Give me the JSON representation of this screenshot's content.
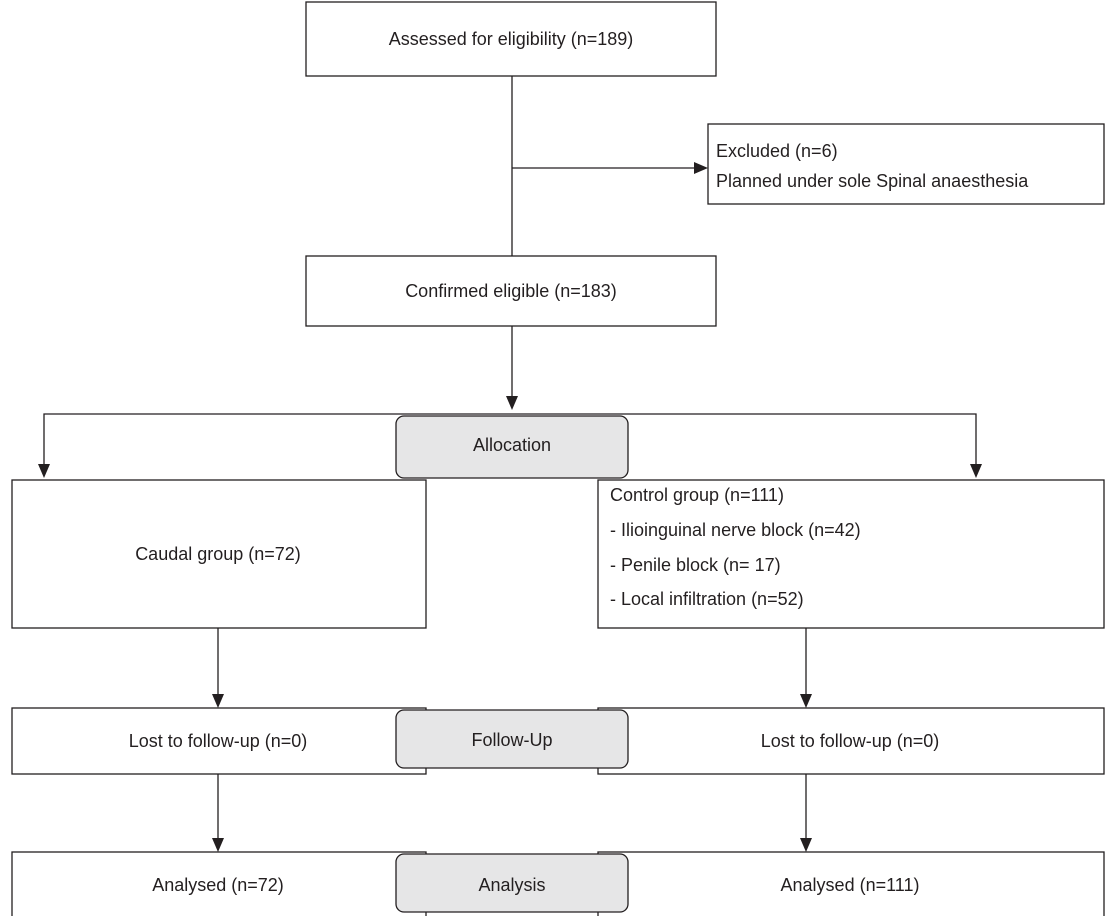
{
  "assessed": {
    "label": "Assessed for eligibility (n=189)"
  },
  "excluded": {
    "lines": [
      "Excluded (n=6)",
      "Planned under sole Spinal anaesthesia"
    ]
  },
  "confirmed": {
    "label": "Confirmed eligible (n=183)"
  },
  "stages": {
    "allocation": "Allocation",
    "follow_up": "Follow-Up",
    "analysis": "Analysis"
  },
  "caudal": {
    "label": "Caudal group (n=72)"
  },
  "control": {
    "lines": [
      "Control group (n=111)",
      "- Ilioinguinal nerve block (n=42)",
      "- Penile block (n= 17)",
      "- Local infiltration (n=52)"
    ]
  },
  "follow_up": {
    "left": "Lost to follow-up (n=0)",
    "right": "Lost to follow-up (n=0)"
  },
  "analysis": {
    "left": "Analysed (n=72)",
    "right": "Analysed (n=111)"
  }
}
